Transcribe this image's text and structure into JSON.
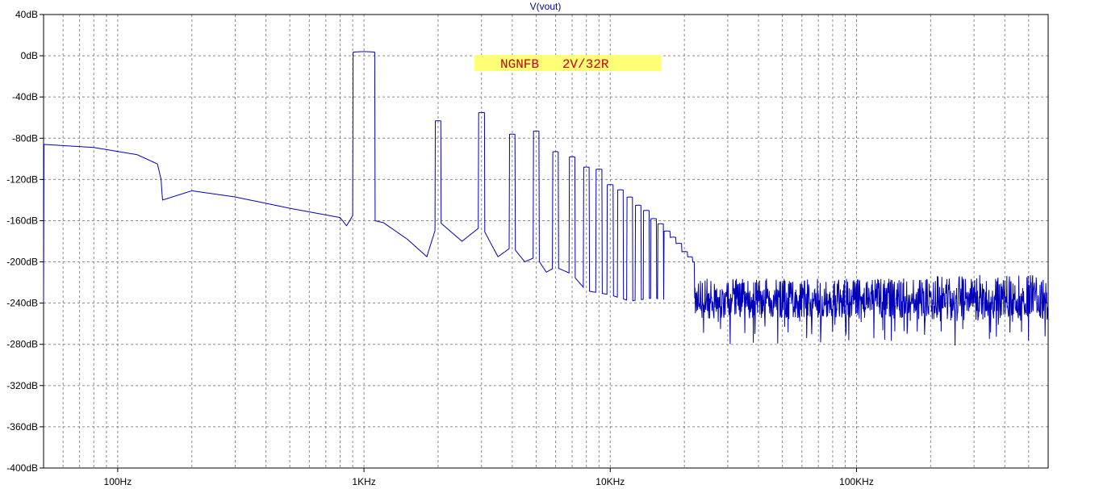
{
  "chart_data": {
    "type": "line",
    "title": "V(vout)",
    "annotation": "NGNFB   2V/32R",
    "x_scale": "log",
    "xlim": [
      50,
      600000
    ],
    "ylim": [
      -400,
      40
    ],
    "grid": true,
    "colors": {
      "trace": "#0000bb",
      "title": "#0000aa",
      "grid": "#8a8a8a",
      "annotation_text": "#cc0000",
      "annotation_bg": "#ffff77"
    },
    "y_ticks": [
      {
        "value": 40,
        "label": "40dB"
      },
      {
        "value": 0,
        "label": "0dB"
      },
      {
        "value": -40,
        "label": "-40dB"
      },
      {
        "value": -80,
        "label": "-80dB"
      },
      {
        "value": -120,
        "label": "-120dB"
      },
      {
        "value": -160,
        "label": "-160dB"
      },
      {
        "value": -200,
        "label": "-200dB"
      },
      {
        "value": -240,
        "label": "-240dB"
      },
      {
        "value": -280,
        "label": "-280dB"
      },
      {
        "value": -320,
        "label": "-320dB"
      },
      {
        "value": -360,
        "label": "-360dB"
      },
      {
        "value": -400,
        "label": "-400dB"
      }
    ],
    "x_ticks": [
      {
        "value": 100,
        "label": "100Hz"
      },
      {
        "value": 1000,
        "label": "1KHz"
      },
      {
        "value": 10000,
        "label": "10KHz"
      },
      {
        "value": 100000,
        "label": "100KHz"
      }
    ],
    "series": [
      {
        "name": "V(vout)",
        "baseline": [
          [
            50,
            -86
          ],
          [
            80,
            -89
          ],
          [
            120,
            -96
          ],
          [
            145,
            -105
          ],
          [
            150,
            -120
          ],
          [
            152,
            -140
          ],
          [
            200,
            -131
          ],
          [
            300,
            -137
          ],
          [
            500,
            -148
          ],
          [
            800,
            -157
          ],
          [
            850,
            -165
          ],
          [
            900,
            -155
          ],
          [
            1200,
            -162
          ],
          [
            1500,
            -178
          ],
          [
            1800,
            -195
          ],
          [
            2000,
            -160
          ],
          [
            2500,
            -180
          ],
          [
            3000,
            -165
          ],
          [
            3500,
            -195
          ],
          [
            4000,
            -185
          ],
          [
            4500,
            -200
          ],
          [
            5000,
            -195
          ],
          [
            5500,
            -210
          ],
          [
            6000,
            -205
          ],
          [
            7000,
            -212
          ],
          [
            8000,
            -228
          ],
          [
            9000,
            -230
          ],
          [
            10000,
            -232
          ],
          [
            12000,
            -238
          ],
          [
            15000,
            -235
          ],
          [
            20000,
            -240
          ],
          [
            30000,
            -244
          ],
          [
            60000,
            -242
          ],
          [
            100000,
            -243
          ],
          [
            200000,
            -240
          ],
          [
            400000,
            -238
          ],
          [
            600000,
            -240
          ]
        ],
        "harmonics": [
          {
            "freq": 1000,
            "level": 4
          },
          {
            "freq": 2000,
            "level": -63
          },
          {
            "freq": 3000,
            "level": -55
          },
          {
            "freq": 4000,
            "level": -76
          },
          {
            "freq": 5000,
            "level": -73
          },
          {
            "freq": 6000,
            "level": -93
          },
          {
            "freq": 7000,
            "level": -98
          },
          {
            "freq": 8000,
            "level": -108
          },
          {
            "freq": 9000,
            "level": -110
          },
          {
            "freq": 10000,
            "level": -125
          },
          {
            "freq": 11000,
            "level": -130
          },
          {
            "freq": 12000,
            "level": -137
          },
          {
            "freq": 13000,
            "level": -145
          },
          {
            "freq": 14000,
            "level": -150
          },
          {
            "freq": 15000,
            "level": -158
          },
          {
            "freq": 16000,
            "level": -163
          },
          {
            "freq": 17000,
            "level": -170
          },
          {
            "freq": 18000,
            "level": -176
          },
          {
            "freq": 19000,
            "level": -182
          },
          {
            "freq": 20000,
            "level": -190
          },
          {
            "freq": 21000,
            "level": -195
          },
          {
            "freq": 22000,
            "level": -200
          }
        ],
        "noise_floor": {
          "from": 22000,
          "to": 600000,
          "mean": -240,
          "spread": 15,
          "spur_level": -222
        }
      }
    ]
  }
}
